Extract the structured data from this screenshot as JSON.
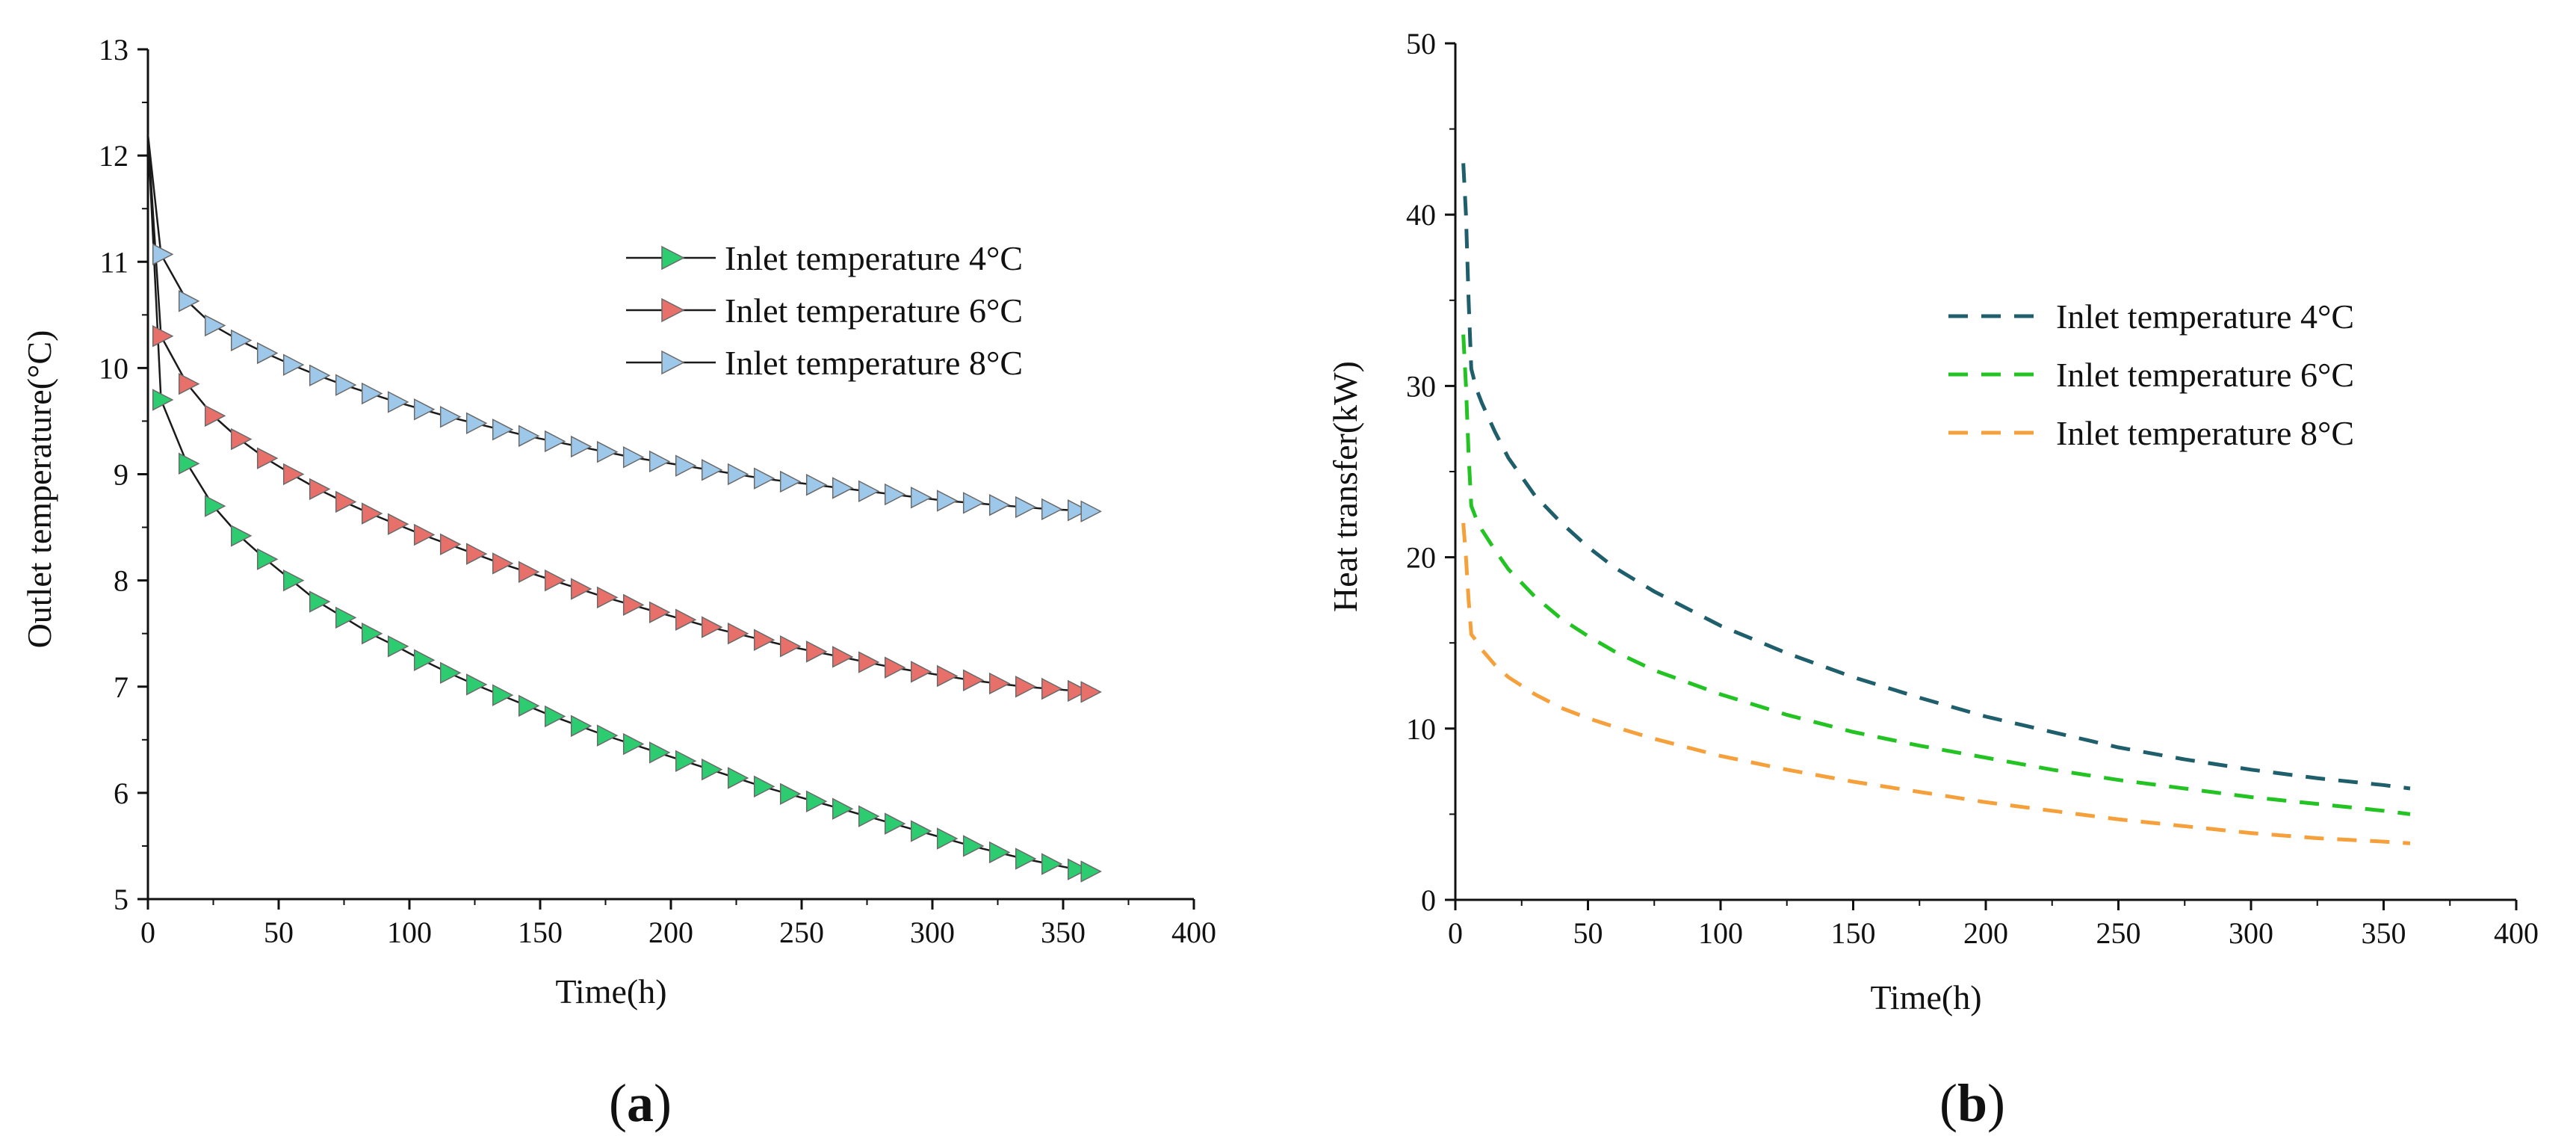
{
  "chart_data": [
    {
      "panel": "a",
      "panel_label_open": "(",
      "panel_label_letter": "a",
      "panel_label_close": ")",
      "type": "line",
      "title": "",
      "xlabel": "Time(h)",
      "ylabel": "Outlet temperature(°C)",
      "xlim": [
        0,
        400
      ],
      "ylim": [
        5,
        13
      ],
      "xticks": [
        0,
        50,
        100,
        150,
        200,
        250,
        300,
        350,
        400
      ],
      "yticks": [
        5,
        6,
        7,
        8,
        9,
        10,
        11,
        12,
        13
      ],
      "grid": false,
      "legend_position": "top-right",
      "series": [
        {
          "name": "Inlet temperature 4°C",
          "color": "#2ecc71",
          "marker": "right-triangle",
          "x": [
            0,
            5,
            15,
            25,
            35,
            45,
            55,
            65,
            75,
            85,
            95,
            105,
            115,
            125,
            135,
            145,
            155,
            165,
            175,
            185,
            195,
            205,
            215,
            225,
            235,
            245,
            255,
            265,
            275,
            285,
            295,
            305,
            315,
            325,
            335,
            345,
            355,
            360
          ],
          "y": [
            12.2,
            9.7,
            9.1,
            8.7,
            8.42,
            8.2,
            8.0,
            7.8,
            7.65,
            7.5,
            7.38,
            7.25,
            7.13,
            7.02,
            6.92,
            6.82,
            6.72,
            6.63,
            6.54,
            6.46,
            6.38,
            6.3,
            6.22,
            6.14,
            6.06,
            5.99,
            5.92,
            5.85,
            5.78,
            5.71,
            5.64,
            5.57,
            5.5,
            5.44,
            5.38,
            5.33,
            5.28,
            5.26
          ]
        },
        {
          "name": "Inlet temperature 6°C",
          "color": "#e8706a",
          "marker": "right-triangle",
          "x": [
            0,
            5,
            15,
            25,
            35,
            45,
            55,
            65,
            75,
            85,
            95,
            105,
            115,
            125,
            135,
            145,
            155,
            165,
            175,
            185,
            195,
            205,
            215,
            225,
            235,
            245,
            255,
            265,
            275,
            285,
            295,
            305,
            315,
            325,
            335,
            345,
            355,
            360
          ],
          "y": [
            12.2,
            10.3,
            9.85,
            9.55,
            9.33,
            9.15,
            9.0,
            8.86,
            8.74,
            8.63,
            8.53,
            8.43,
            8.34,
            8.25,
            8.16,
            8.08,
            8.0,
            7.92,
            7.84,
            7.77,
            7.7,
            7.63,
            7.56,
            7.5,
            7.44,
            7.38,
            7.33,
            7.28,
            7.23,
            7.18,
            7.14,
            7.1,
            7.06,
            7.03,
            7.0,
            6.98,
            6.96,
            6.95
          ]
        },
        {
          "name": "Inlet temperature 8°C",
          "color": "#9ec8ea",
          "marker": "right-triangle",
          "x": [
            0,
            5,
            15,
            25,
            35,
            45,
            55,
            65,
            75,
            85,
            95,
            105,
            115,
            125,
            135,
            145,
            155,
            165,
            175,
            185,
            195,
            205,
            215,
            225,
            235,
            245,
            255,
            265,
            275,
            285,
            295,
            305,
            315,
            325,
            335,
            345,
            355,
            360
          ],
          "y": [
            12.2,
            11.07,
            10.63,
            10.4,
            10.26,
            10.14,
            10.03,
            9.93,
            9.84,
            9.76,
            9.68,
            9.61,
            9.54,
            9.48,
            9.42,
            9.36,
            9.31,
            9.26,
            9.21,
            9.16,
            9.12,
            9.08,
            9.04,
            9.0,
            8.96,
            8.93,
            8.9,
            8.87,
            8.84,
            8.81,
            8.78,
            8.75,
            8.73,
            8.71,
            8.69,
            8.67,
            8.66,
            8.65
          ]
        }
      ]
    },
    {
      "panel": "b",
      "panel_label_open": "(",
      "panel_label_letter": "b",
      "panel_label_close": ")",
      "type": "line",
      "title": "",
      "xlabel": "Time(h)",
      "ylabel": "Heat transfer(kW)",
      "xlim": [
        0,
        400
      ],
      "ylim": [
        0,
        50
      ],
      "xticks": [
        0,
        50,
        100,
        150,
        200,
        250,
        300,
        350,
        400
      ],
      "yticks": [
        0,
        10,
        20,
        30,
        40,
        50
      ],
      "grid": false,
      "legend_position": "top-right",
      "series": [
        {
          "name": "Inlet temperature 4°C",
          "color": "#1f5f6b",
          "style": "dashed",
          "x": [
            3,
            4,
            5,
            6,
            8,
            10,
            15,
            20,
            30,
            40,
            50,
            60,
            75,
            100,
            125,
            150,
            175,
            200,
            225,
            250,
            275,
            300,
            325,
            350,
            360
          ],
          "y": [
            43,
            40,
            35,
            31,
            29.8,
            29,
            27.3,
            25.8,
            23.6,
            22,
            20.6,
            19.4,
            18,
            16,
            14.4,
            13,
            11.8,
            10.7,
            9.8,
            8.9,
            8.2,
            7.6,
            7.1,
            6.7,
            6.5
          ]
        },
        {
          "name": "Inlet temperature 6°C",
          "color": "#22c322",
          "style": "dashed",
          "x": [
            3,
            4,
            5,
            6,
            8,
            10,
            15,
            20,
            30,
            40,
            50,
            60,
            75,
            100,
            125,
            150,
            175,
            200,
            225,
            250,
            275,
            300,
            325,
            350,
            360
          ],
          "y": [
            33,
            30,
            26,
            23,
            22.2,
            21.6,
            20.4,
            19.3,
            17.7,
            16.4,
            15.4,
            14.5,
            13.4,
            12,
            10.8,
            9.8,
            9,
            8.3,
            7.6,
            7,
            6.5,
            6,
            5.6,
            5.2,
            5
          ]
        },
        {
          "name": "Inlet temperature 8°C",
          "color": "#f5a03a",
          "style": "dashed",
          "x": [
            3,
            4,
            5,
            6,
            8,
            10,
            15,
            20,
            30,
            40,
            50,
            60,
            75,
            100,
            125,
            150,
            175,
            200,
            225,
            250,
            275,
            300,
            325,
            350,
            360
          ],
          "y": [
            22,
            20,
            17.5,
            15.5,
            15.1,
            14.6,
            13.7,
            13,
            12,
            11.2,
            10.6,
            10.1,
            9.4,
            8.4,
            7.6,
            6.9,
            6.3,
            5.7,
            5.2,
            4.7,
            4.3,
            3.9,
            3.6,
            3.4,
            3.3
          ]
        }
      ]
    }
  ]
}
